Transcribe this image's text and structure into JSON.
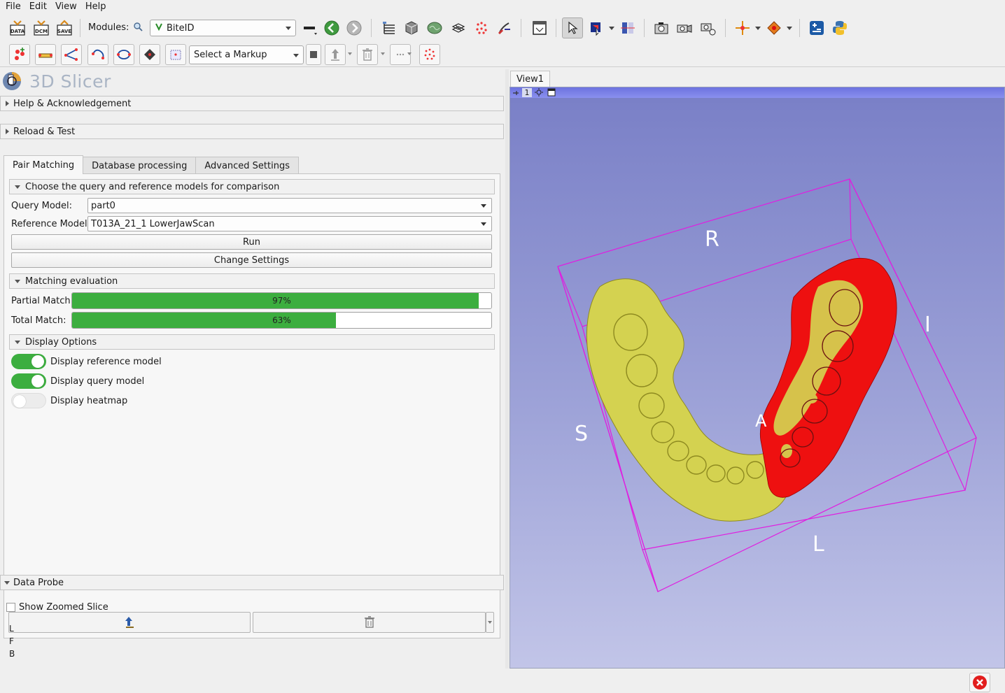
{
  "menubar": {
    "items": [
      {
        "label": "File"
      },
      {
        "label": "Edit"
      },
      {
        "label": "View"
      },
      {
        "label": "Help"
      }
    ]
  },
  "toolbar": {
    "data_label": "DATA",
    "dcm_label": "DCM",
    "save_label": "SAVE",
    "modules_label": "Modules:",
    "module_selected": "BiteID",
    "markup_selected": "Select a Markup"
  },
  "app": {
    "title": "3D Slicer"
  },
  "sections": {
    "help": "Help & Acknowledgement",
    "reload": "Reload & Test",
    "data_probe": "Data Probe"
  },
  "tabs": [
    {
      "label": "Pair Matching",
      "active": true
    },
    {
      "label": "Database processing",
      "active": false
    },
    {
      "label": "Advanced Settings",
      "active": false
    }
  ],
  "pair_matching": {
    "choose_header": "Choose the query and reference models for comparison",
    "query_label": "Query Model:",
    "query_value": "part0",
    "reference_label": "Reference Model:",
    "reference_value": "T013A_21_1 LowerJawScan",
    "run_label": "Run",
    "change_settings_label": "Change Settings",
    "evaluation_header": "Matching evaluation",
    "partial_label": "Partial Match:",
    "partial_value": "97%",
    "partial_fraction": 0.97,
    "total_label": "Total Match:",
    "total_value": "63%",
    "total_fraction": 0.63,
    "display_header": "Display Options",
    "toggles": [
      {
        "label": "Display reference model",
        "on": true
      },
      {
        "label": "Display query model",
        "on": true
      },
      {
        "label": "Display heatmap",
        "on": false
      }
    ]
  },
  "data_probe": {
    "show_zoomed_label": "Show Zoomed Slice",
    "rows": [
      "L",
      "F",
      "B"
    ]
  },
  "view": {
    "tab_label": "View1",
    "view_number": "1",
    "orientation": {
      "r": "R",
      "s": "S",
      "l": "L",
      "i": "I",
      "a": "A"
    }
  },
  "colors": {
    "accent_green": "#3cae3f",
    "box_magenta": "#e01ee0",
    "reference_yellow": "#d4d250",
    "query_red": "#ee1010"
  }
}
